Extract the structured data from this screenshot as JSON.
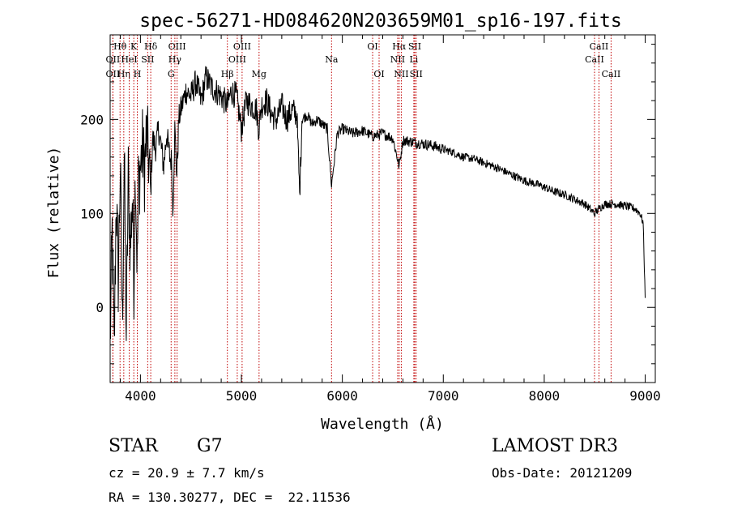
{
  "chart_data": {
    "type": "line",
    "title": "spec-56271-HD084620N203659M01_sp16-197.fits",
    "xlabel": "Wavelength (Å)",
    "ylabel": "Flux (relative)",
    "xlim": [
      3700,
      9100
    ],
    "ylim": [
      -80,
      290
    ],
    "xticks": [
      4000,
      5000,
      6000,
      7000,
      8000,
      9000
    ],
    "yticks": [
      0,
      100,
      200
    ],
    "grid": false,
    "series": [
      {
        "name": "spectrum",
        "x": [
          3700,
          3720,
          3740,
          3760,
          3780,
          3800,
          3820,
          3840,
          3860,
          3880,
          3900,
          3920,
          3935,
          3950,
          3968,
          3980,
          4000,
          4020,
          4040,
          4060,
          4080,
          4101,
          4120,
          4150,
          4180,
          4200,
          4230,
          4260,
          4290,
          4310,
          4320,
          4340,
          4360,
          4380,
          4400,
          4450,
          4500,
          4550,
          4600,
          4650,
          4700,
          4750,
          4800,
          4861,
          4900,
          4950,
          5000,
          5050,
          5100,
          5150,
          5172,
          5200,
          5250,
          5300,
          5350,
          5400,
          5450,
          5500,
          5550,
          5577,
          5600,
          5650,
          5700,
          5750,
          5800,
          5850,
          5893,
          5950,
          6000,
          6100,
          6200,
          6300,
          6400,
          6500,
          6563,
          6600,
          6700,
          6800,
          6900,
          7000,
          7100,
          7200,
          7300,
          7400,
          7500,
          7600,
          7700,
          7800,
          7900,
          8000,
          8100,
          8200,
          8300,
          8400,
          8498,
          8542,
          8600,
          8662,
          8700,
          8800,
          8900,
          8950,
          8980,
          9000
        ],
        "y": [
          -40,
          80,
          -50,
          120,
          30,
          150,
          -20,
          160,
          -30,
          140,
          60,
          120,
          30,
          150,
          40,
          130,
          150,
          170,
          145,
          185,
          160,
          120,
          180,
          170,
          190,
          175,
          150,
          185,
          160,
          155,
          100,
          190,
          140,
          200,
          210,
          230,
          225,
          240,
          220,
          245,
          235,
          230,
          225,
          215,
          230,
          225,
          190,
          220,
          215,
          210,
          190,
          215,
          220,
          205,
          200,
          215,
          200,
          210,
          205,
          120,
          200,
          205,
          195,
          200,
          195,
          190,
          130,
          185,
          190,
          185,
          188,
          182,
          185,
          180,
          150,
          178,
          176,
          174,
          172,
          168,
          165,
          160,
          158,
          154,
          150,
          145,
          140,
          135,
          132,
          128,
          123,
          120,
          115,
          110,
          100,
          105,
          110,
          110,
          110,
          108,
          105,
          100,
          90,
          10
        ]
      }
    ],
    "lines": [
      {
        "name": "Hθ",
        "x": 3798,
        "label_row": 1
      },
      {
        "name": "OII",
        "x": 3727,
        "label_row": 2
      },
      {
        "name": "OII",
        "x": 3727,
        "label_row": 3
      },
      {
        "name": "Hη",
        "x": 3835,
        "label_row": 3
      },
      {
        "name": "HeI",
        "x": 3889,
        "label_row": 2
      },
      {
        "name": "K",
        "x": 3934,
        "label_row": 1
      },
      {
        "name": "H",
        "x": 3969,
        "label_row": 3
      },
      {
        "name": "SII",
        "x": 4072,
        "label_row": 2
      },
      {
        "name": "Hδ",
        "x": 4102,
        "label_row": 1
      },
      {
        "name": "OIII",
        "x": 4363,
        "label_row": 1
      },
      {
        "name": "Hγ",
        "x": 4341,
        "label_row": 2
      },
      {
        "name": "G",
        "x": 4304,
        "label_row": 3
      },
      {
        "name": "Hβ",
        "x": 4861,
        "label_row": 3
      },
      {
        "name": "OIII",
        "x": 4959,
        "label_row": 2
      },
      {
        "name": "OIII",
        "x": 5007,
        "label_row": 1
      },
      {
        "name": "Mg",
        "x": 5175,
        "label_row": 3
      },
      {
        "name": "Na",
        "x": 5893,
        "label_row": 2
      },
      {
        "name": "OI",
        "x": 6300,
        "label_row": 1
      },
      {
        "name": "OI",
        "x": 6364,
        "label_row": 3
      },
      {
        "name": "Hα",
        "x": 6563,
        "label_row": 1
      },
      {
        "name": "NII",
        "x": 6548,
        "label_row": 2
      },
      {
        "name": "NII",
        "x": 6584,
        "label_row": 3
      },
      {
        "name": "Li",
        "x": 6708,
        "label_row": 2
      },
      {
        "name": "SII",
        "x": 6717,
        "label_row": 1
      },
      {
        "name": "SII",
        "x": 6731,
        "label_row": 3
      },
      {
        "name": "CaII",
        "x": 8498,
        "label_row": 2
      },
      {
        "name": "CaII",
        "x": 8542,
        "label_row": 1
      },
      {
        "name": "CaII",
        "x": 8662,
        "label_row": 3
      }
    ]
  },
  "info": {
    "class_label": "STAR",
    "subclass": "G7",
    "survey": "LAMOST DR3",
    "redshift": "cz = 20.9 ± 7.7 km/s",
    "obs_date": "Obs-Date: 20121209",
    "coords": "RA = 130.30277, DEC =  22.11536"
  }
}
